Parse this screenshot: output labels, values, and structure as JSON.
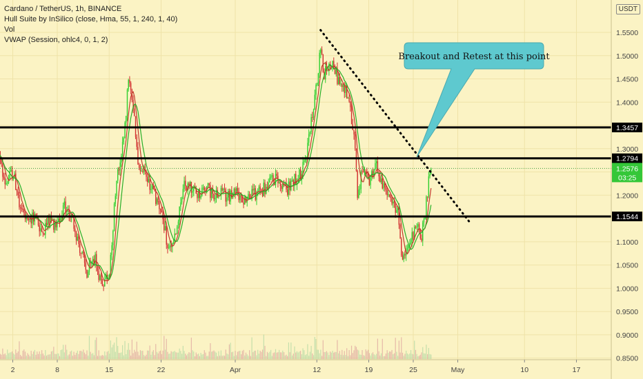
{
  "legend": {
    "title": "Cardano / TetherUS, 1h, BINANCE",
    "hull": "Hull Suite by InSilico (close, Hma, 55, 1, 240, 1, 40)",
    "vol": "Vol",
    "vwap": "VWAP (Session, ohlc4, 0, 1, 2)"
  },
  "currency_button": "USDT",
  "annotation": {
    "text": "Breakout and Retest at this point"
  },
  "colors": {
    "background": "#fbf3c4",
    "up": "#2fcf2f",
    "down": "#d12f2f",
    "callout": "#5ec9cf",
    "price_tag": "#34c738"
  },
  "chart_data": {
    "type": "candlestick",
    "symbol": "Cardano / TetherUS",
    "interval": "1h",
    "exchange": "BINANCE",
    "x_axis": {
      "tick_labels": [
        "2",
        "8",
        "15",
        "22",
        "Apr",
        "12",
        "19",
        "25",
        "May",
        "10",
        "17"
      ],
      "tick_days": [
        2,
        8,
        15,
        22,
        32,
        43,
        50,
        56,
        62,
        71,
        78
      ]
    },
    "y_axis": {
      "unit": "USDT",
      "range": [
        0.845,
        1.585
      ],
      "ticks": [
        0.85,
        0.9,
        0.95,
        1.0,
        1.05,
        1.1,
        1.15,
        1.2,
        1.25,
        1.3,
        1.35,
        1.4,
        1.45,
        1.5,
        1.55
      ],
      "tick_labels": [
        "0.8500",
        "0.9000",
        "0.9500",
        "1.0000",
        "1.0500",
        "1.1000",
        "1.1500",
        "1.2000",
        "1.2500",
        "1.3000",
        "1.3500",
        "1.4000",
        "1.4500",
        "1.5000",
        "1.5500"
      ]
    },
    "horizontal_levels": [
      {
        "value": 1.3457,
        "label": "1.3457"
      },
      {
        "value": 1.2794,
        "label": "1.2794"
      },
      {
        "value": 1.1544,
        "label": "1.1544"
      }
    ],
    "current_price": {
      "value": 1.2576,
      "label": "1.2576",
      "countdown": "03:25"
    },
    "trendline": {
      "from": {
        "day": 43.5,
        "value": 1.555
      },
      "to": {
        "day": 63.8,
        "value": 1.138
      },
      "style": "dotted"
    },
    "price_path": [
      {
        "day": 0,
        "value": 1.29
      },
      {
        "day": 1,
        "value": 1.225
      },
      {
        "day": 2,
        "value": 1.25
      },
      {
        "day": 3,
        "value": 1.18
      },
      {
        "day": 4,
        "value": 1.135
      },
      {
        "day": 5,
        "value": 1.155
      },
      {
        "day": 6,
        "value": 1.12
      },
      {
        "day": 7,
        "value": 1.15
      },
      {
        "day": 8,
        "value": 1.13
      },
      {
        "day": 9,
        "value": 1.18
      },
      {
        "day": 10,
        "value": 1.15
      },
      {
        "day": 11,
        "value": 1.09
      },
      {
        "day": 12,
        "value": 1.03
      },
      {
        "day": 13,
        "value": 1.065
      },
      {
        "day": 14,
        "value": 1.01
      },
      {
        "day": 15,
        "value": 1.035
      },
      {
        "day": 16,
        "value": 1.23
      },
      {
        "day": 17,
        "value": 1.32
      },
      {
        "day": 17.6,
        "value": 1.45
      },
      {
        "day": 18.3,
        "value": 1.38
      },
      {
        "day": 19,
        "value": 1.26
      },
      {
        "day": 20,
        "value": 1.245
      },
      {
        "day": 21,
        "value": 1.2
      },
      {
        "day": 22,
        "value": 1.17
      },
      {
        "day": 23,
        "value": 1.08
      },
      {
        "day": 24,
        "value": 1.11
      },
      {
        "day": 25,
        "value": 1.22
      },
      {
        "day": 26,
        "value": 1.215
      },
      {
        "day": 27,
        "value": 1.2
      },
      {
        "day": 28,
        "value": 1.22
      },
      {
        "day": 29,
        "value": 1.2
      },
      {
        "day": 30,
        "value": 1.215
      },
      {
        "day": 31,
        "value": 1.195
      },
      {
        "day": 32,
        "value": 1.205
      },
      {
        "day": 33,
        "value": 1.19
      },
      {
        "day": 34,
        "value": 1.2
      },
      {
        "day": 35,
        "value": 1.205
      },
      {
        "day": 36,
        "value": 1.215
      },
      {
        "day": 37,
        "value": 1.24
      },
      {
        "day": 38,
        "value": 1.225
      },
      {
        "day": 39,
        "value": 1.215
      },
      {
        "day": 40,
        "value": 1.235
      },
      {
        "day": 41,
        "value": 1.25
      },
      {
        "day": 41.5,
        "value": 1.28
      },
      {
        "day": 42,
        "value": 1.33
      },
      {
        "day": 42.6,
        "value": 1.39
      },
      {
        "day": 43,
        "value": 1.44
      },
      {
        "day": 43.5,
        "value": 1.515
      },
      {
        "day": 44,
        "value": 1.46
      },
      {
        "day": 45,
        "value": 1.49
      },
      {
        "day": 46,
        "value": 1.44
      },
      {
        "day": 47,
        "value": 1.425
      },
      {
        "day": 48,
        "value": 1.34
      },
      {
        "day": 48.5,
        "value": 1.2
      },
      {
        "day": 49,
        "value": 1.245
      },
      {
        "day": 50,
        "value": 1.23
      },
      {
        "day": 51,
        "value": 1.27
      },
      {
        "day": 52,
        "value": 1.215
      },
      {
        "day": 53,
        "value": 1.185
      },
      {
        "day": 54,
        "value": 1.16
      },
      {
        "day": 54.5,
        "value": 1.05
      },
      {
        "day": 55,
        "value": 1.07
      },
      {
        "day": 56,
        "value": 1.12
      },
      {
        "day": 56.5,
        "value": 1.14
      },
      {
        "day": 57,
        "value": 1.1
      },
      {
        "day": 57.5,
        "value": 1.15
      },
      {
        "day": 58,
        "value": 1.22
      },
      {
        "day": 58.5,
        "value": 1.258
      }
    ]
  }
}
